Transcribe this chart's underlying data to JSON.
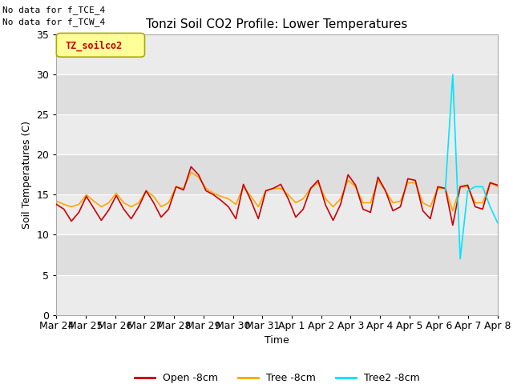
{
  "title": "Tonzi Soil CO2 Profile: Lower Temperatures",
  "xlabel": "Time",
  "ylabel": "Soil Temperatures (C)",
  "annotations": [
    "No data for f_TCE_4",
    "No data for f_TCW_4"
  ],
  "legend_label": "TZ_soilco2",
  "ylim": [
    0,
    35
  ],
  "bg_color": "#e8e8e8",
  "bg_color_dark": "#d8d8d8",
  "open_color": "#cc0000",
  "tree_color": "#ffa500",
  "tree2_color": "#00e5ff",
  "line_width": 1.2,
  "xtick_labels": [
    "Mar 24",
    "Mar 25",
    "Mar 26",
    "Mar 27",
    "Mar 28",
    "Mar 29",
    "Mar 30",
    "Mar 31",
    "Apr 1",
    "Apr 2",
    "Apr 3",
    "Apr 4",
    "Apr 5",
    "Apr 6",
    "Apr 7",
    "Apr 8"
  ],
  "open_8cm": [
    13.8,
    13.2,
    11.7,
    12.8,
    14.8,
    13.3,
    11.8,
    13.1,
    14.9,
    13.2,
    12.0,
    13.5,
    15.5,
    14.0,
    12.2,
    13.2,
    16.0,
    15.6,
    18.5,
    17.5,
    15.5,
    15.0,
    14.3,
    13.5,
    12.0,
    16.3,
    14.3,
    12.0,
    15.5,
    15.8,
    16.3,
    14.5,
    12.2,
    13.2,
    15.8,
    16.8,
    13.7,
    11.8,
    13.8,
    17.5,
    16.2,
    13.2,
    12.8,
    17.2,
    15.5,
    13.0,
    13.5,
    17.0,
    16.8,
    13.0,
    12.0,
    16.0,
    15.8,
    11.2,
    16.0,
    16.2,
    13.5,
    13.2,
    16.5,
    16.2
  ],
  "tree_8cm": [
    14.2,
    13.8,
    13.5,
    13.8,
    15.0,
    14.2,
    13.5,
    14.0,
    15.2,
    14.0,
    13.5,
    14.0,
    15.5,
    14.8,
    13.5,
    14.0,
    16.0,
    15.8,
    17.8,
    17.2,
    15.8,
    15.2,
    14.8,
    14.5,
    13.8,
    16.0,
    14.8,
    13.5,
    15.5,
    15.8,
    15.8,
    15.0,
    14.0,
    14.5,
    15.8,
    16.5,
    14.5,
    13.5,
    14.5,
    16.8,
    16.0,
    14.0,
    14.0,
    16.8,
    15.5,
    14.0,
    14.2,
    16.5,
    16.5,
    14.0,
    13.5,
    15.8,
    15.8,
    13.0,
    16.0,
    16.0,
    14.0,
    14.0,
    16.5,
    16.0
  ],
  "tree2_8cm_x": [
    52,
    53,
    54,
    55,
    56,
    57,
    58,
    59
  ],
  "tree2_8cm_y": [
    15.5,
    30.0,
    7.0,
    15.5,
    16.0,
    16.0,
    13.5,
    11.5
  ]
}
